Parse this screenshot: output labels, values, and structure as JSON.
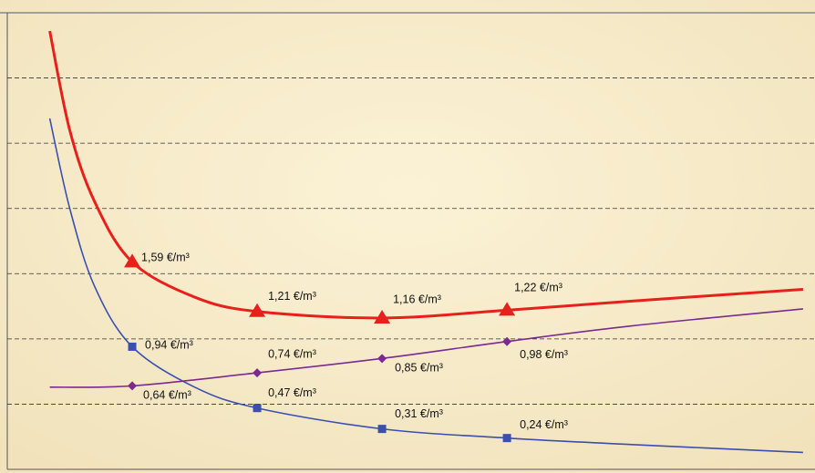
{
  "chart_data": {
    "type": "line",
    "xlim": [
      0,
      6.4
    ],
    "ylim": [
      0,
      3.5
    ],
    "yticks": [
      0.5,
      1,
      1.5,
      2,
      2.5,
      3
    ],
    "grid": true,
    "series": [
      {
        "color": "#e8201c",
        "marker": "triangle",
        "x": [
          0.34,
          0.5,
          0.7,
          1,
          1.5,
          2,
          3,
          4,
          5,
          6.37
        ],
        "values": [
          3.36,
          2.6,
          2.05,
          1.59,
          1.32,
          1.21,
          1.16,
          1.22,
          1.29,
          1.38
        ],
        "value_labels": [
          null,
          null,
          null,
          "1,59 €/m³",
          null,
          "1,21 €/m³",
          "1,16 €/m³",
          "1,22 €/m³",
          null,
          null
        ]
      },
      {
        "color": "#3a4fb0",
        "marker": "square",
        "x": [
          0.34,
          0.5,
          0.7,
          1,
          1.5,
          2,
          3,
          4,
          5,
          6.37
        ],
        "values": [
          2.69,
          2.0,
          1.4,
          0.94,
          0.63,
          0.47,
          0.31,
          0.24,
          0.19,
          0.13
        ],
        "value_labels": [
          null,
          null,
          null,
          "0,94 €/m³",
          null,
          "0,47 €/m³",
          "0,31 €/m³",
          "0,24 €/m³",
          null,
          null
        ]
      },
      {
        "color": "#7a2a90",
        "marker": "diamond",
        "x": [
          0.34,
          1,
          2,
          3,
          4,
          5,
          6.37
        ],
        "values": [
          0.63,
          0.64,
          0.74,
          0.85,
          0.98,
          1.1,
          1.23
        ],
        "value_labels": [
          null,
          "0,64 €/m³",
          "0,74 €/m³",
          "0,85 €/m³",
          "0,98 €/m³",
          null,
          null
        ]
      }
    ]
  }
}
